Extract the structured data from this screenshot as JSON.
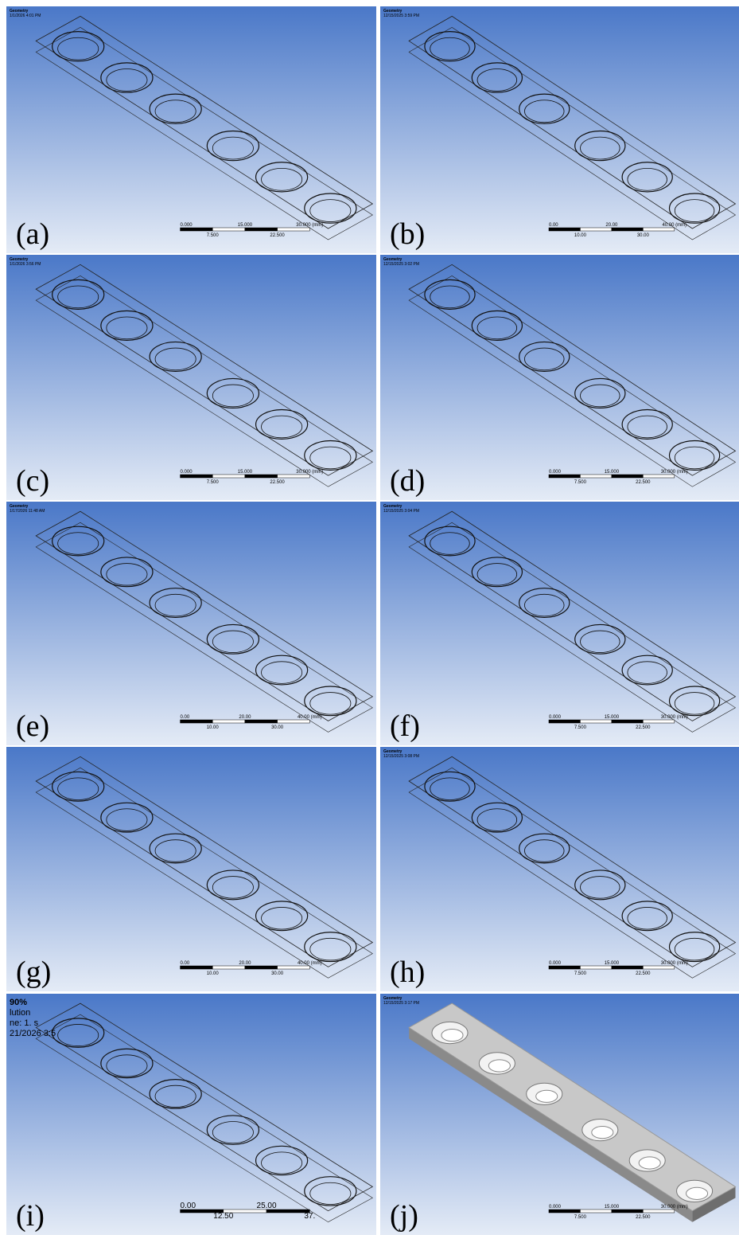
{
  "panels": [
    {
      "label": "(a)",
      "header_lines": [
        "Geometry",
        "1/1/2026 4:01 PM"
      ],
      "scale": {
        "top": [
          "0.000",
          "15.000",
          "30.000 (mm)"
        ],
        "bottom": [
          "7.500",
          "22.500"
        ]
      }
    },
    {
      "label": "(b)",
      "header_lines": [
        "Geometry",
        "12/15/2025 3:59 PM"
      ],
      "scale": {
        "top": [
          "0.00",
          "20.00",
          "40.00 (mm)"
        ],
        "bottom": [
          "10.00",
          "30.00"
        ]
      }
    },
    {
      "label": "(c)",
      "header_lines": [
        "Geometry",
        "1/1/2026 3:56 PM"
      ],
      "scale": {
        "top": [
          "0.000",
          "15.000",
          "30.000 (mm)"
        ],
        "bottom": [
          "7.500",
          "22.500"
        ]
      }
    },
    {
      "label": "(d)",
      "header_lines": [
        "Geometry",
        "12/15/2025 3:02 PM"
      ],
      "scale": {
        "top": [
          "0.000",
          "15.000",
          "30.000 (mm)"
        ],
        "bottom": [
          "7.500",
          "22.500"
        ]
      }
    },
    {
      "label": "(e)",
      "header_lines": [
        "Geometry",
        "1/17/2026 11:48 AM"
      ],
      "scale": {
        "top": [
          "0.00",
          "20.00",
          "40.00 (mm)"
        ],
        "bottom": [
          "10.00",
          "30.00"
        ]
      }
    },
    {
      "label": "(f)",
      "header_lines": [
        "Geometry",
        "12/15/2025 3:04 PM"
      ],
      "scale": {
        "top": [
          "0.000",
          "15.000",
          "30.000 (mm)"
        ],
        "bottom": [
          "7.500",
          "22.500"
        ]
      }
    },
    {
      "label": "(g)",
      "scale": {
        "top": [
          "0.00",
          "20.00",
          "40.00 (mm)"
        ],
        "bottom": [
          "10.00",
          "30.00"
        ]
      }
    },
    {
      "label": "(h)",
      "header_lines": [
        "Geometry",
        "12/15/2025 3:08 PM"
      ],
      "scale": {
        "top": [
          "0.000",
          "15.000",
          "30.000 (mm)"
        ],
        "bottom": [
          "7.500",
          "22.500"
        ]
      }
    },
    {
      "label": "(i)",
      "header_lines": [
        "90%",
        "lution",
        "ne: 1. s",
        "21/2026 3:5"
      ],
      "scale": {
        "top": [
          "0.00",
          "25.00"
        ],
        "bottom": [
          "12.50",
          "37."
        ]
      }
    },
    {
      "label": "(j)",
      "header_lines": [
        "Geometry",
        "12/15/2025 3:17 PM"
      ],
      "scale": {
        "top": [
          "0.000",
          "15.000",
          "30.000 (mm)"
        ],
        "bottom": [
          "7.500",
          "22.500"
        ]
      }
    }
  ]
}
